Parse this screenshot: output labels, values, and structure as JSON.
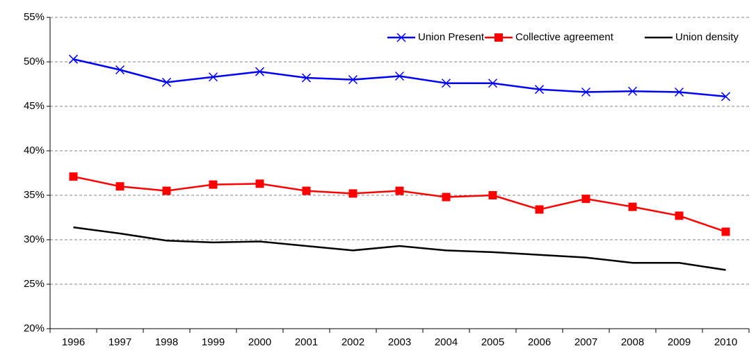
{
  "chart_data": {
    "type": "line",
    "categories": [
      "1996",
      "1997",
      "1998",
      "1999",
      "2000",
      "2001",
      "2002",
      "2003",
      "2004",
      "2005",
      "2006",
      "2007",
      "2008",
      "2009",
      "2010"
    ],
    "series": [
      {
        "name": "Union Present",
        "color": "#0000ff",
        "marker": "x",
        "values": [
          50.3,
          49.1,
          47.7,
          48.3,
          48.9,
          48.2,
          48.0,
          48.4,
          47.6,
          47.6,
          46.9,
          46.6,
          46.7,
          46.6,
          46.1
        ]
      },
      {
        "name": "Collective agreement",
        "color": "#ff0000",
        "marker": "square",
        "values": [
          37.1,
          36.0,
          35.5,
          36.2,
          36.3,
          35.5,
          35.2,
          35.5,
          34.8,
          35.0,
          33.4,
          34.6,
          33.7,
          32.7,
          30.9
        ]
      },
      {
        "name": "Union density",
        "color": "#000000",
        "marker": "none",
        "values": [
          31.4,
          30.7,
          29.9,
          29.7,
          29.8,
          29.3,
          28.8,
          29.3,
          28.8,
          28.6,
          28.3,
          28.0,
          27.4,
          27.4,
          26.6
        ]
      }
    ],
    "ylim": [
      20,
      55
    ],
    "yticks": [
      {
        "value": 20,
        "label": "20%"
      },
      {
        "value": 25,
        "label": "25%"
      },
      {
        "value": 30,
        "label": "30%"
      },
      {
        "value": 35,
        "label": "35%"
      },
      {
        "value": 40,
        "label": "40%"
      },
      {
        "value": 45,
        "label": "45%"
      },
      {
        "value": 50,
        "label": "50%"
      },
      {
        "value": 55,
        "label": "55%"
      }
    ],
    "grid": true,
    "legend": "top-right"
  }
}
